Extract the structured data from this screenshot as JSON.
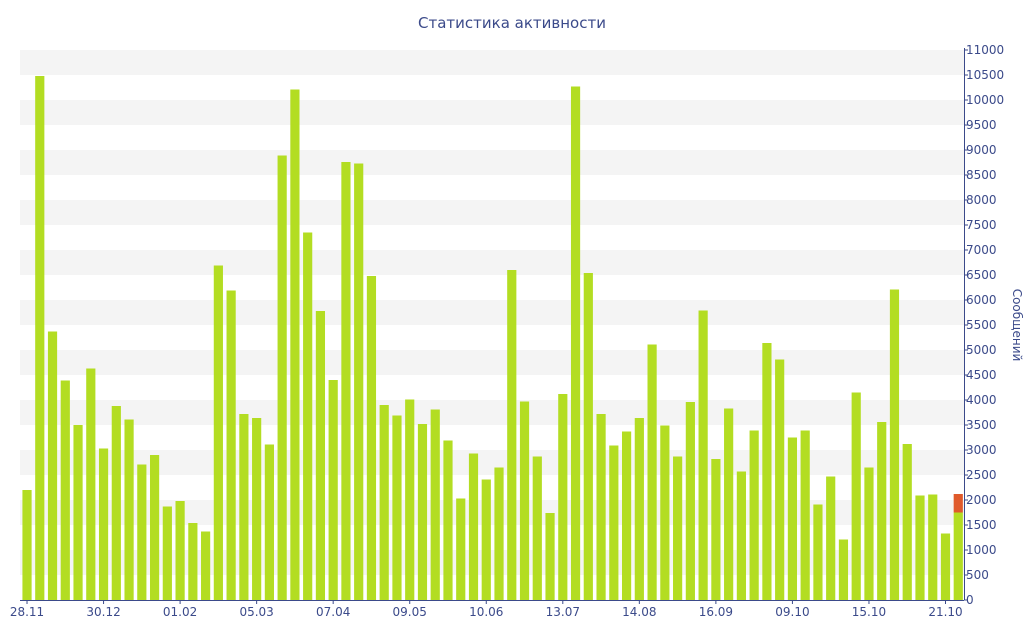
{
  "chart_data": {
    "type": "bar",
    "title": "Статистика активности",
    "ylabel": "Сообщений",
    "ylim": [
      0,
      11000
    ],
    "ytick_step": 500,
    "y_axis_side": "right",
    "grid": "alternating horizontal bands",
    "x_tick_labels": [
      {
        "label": "28.11",
        "index": 0
      },
      {
        "label": "30.12",
        "index": 6
      },
      {
        "label": "01.02",
        "index": 12
      },
      {
        "label": "05.03",
        "index": 18
      },
      {
        "label": "07.04",
        "index": 24
      },
      {
        "label": "09.05",
        "index": 30
      },
      {
        "label": "10.06",
        "index": 36
      },
      {
        "label": "13.07",
        "index": 42
      },
      {
        "label": "14.08",
        "index": 48
      },
      {
        "label": "16.09",
        "index": 54
      },
      {
        "label": "09.10",
        "index": 60
      },
      {
        "label": "15.10",
        "index": 66
      },
      {
        "label": "21.10",
        "index": 72
      }
    ],
    "series": [
      {
        "values": [
          2200,
          10480,
          5370,
          4390,
          3500,
          4630,
          3030,
          3880,
          3610,
          2710,
          2900,
          1870,
          1980,
          1540,
          1370,
          6690,
          6190,
          3720,
          3640,
          3110,
          8890,
          10210,
          7350,
          5780,
          4400,
          8760,
          8730,
          6480,
          3900,
          3690,
          4010,
          3520,
          3810,
          3190,
          2030,
          2930,
          2410,
          2650,
          6600,
          3970,
          2870,
          1740,
          4120,
          10270,
          6540,
          3720,
          3090,
          3370,
          3640,
          5110,
          3490,
          2870,
          3960,
          5790,
          2820,
          3830,
          2570,
          3390,
          5140,
          4810,
          3250,
          3390,
          1910,
          2470,
          1210,
          4150,
          2650,
          3560,
          6210,
          3120,
          2090,
          2110,
          1330
        ],
        "color": "#b3dd22"
      }
    ],
    "highlight": {
      "value": 2120,
      "stacked_base": 1750,
      "color": "#e05a2b"
    }
  }
}
